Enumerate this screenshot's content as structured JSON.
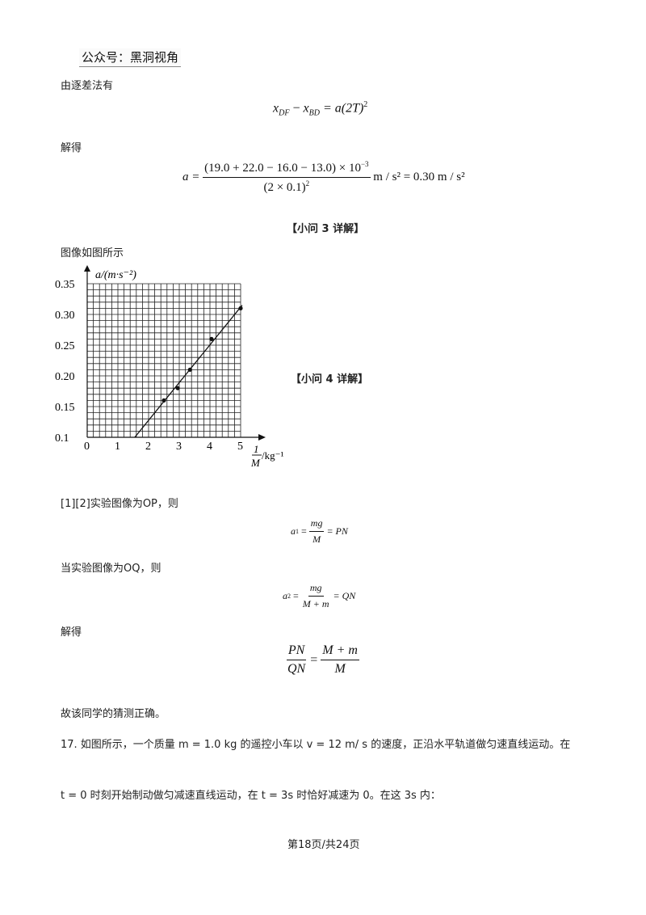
{
  "watermark": "公众号：黑洞视角",
  "para_diff": "由逐差法有",
  "eq_diff": {
    "x_df": "x",
    "sub_df": "DF",
    "minus": "−",
    "x_bd": "x",
    "sub_bd": "BD",
    "rhs": "= a(2T)",
    "sup": "2"
  },
  "solve1": "解得",
  "eq_a": {
    "lhs": "a =",
    "num": "(19.0 + 22.0 − 16.0 − 13.0) × 10",
    "exp": "−3",
    "den": "(2 × 0.1)",
    "den_sup": "2",
    "rhs": "m / s² = 0.30 m / s²"
  },
  "q3_title": "【小问 3 详解】",
  "fig_caption": "图像如图所示",
  "q4_title": "【小问 4 详解】",
  "chart_data": {
    "type": "scatter",
    "ylabel": "a/(m·s⁻²)",
    "xlabel_num": "1",
    "xlabel_den": "M",
    "xlabel_unit": "/kg⁻¹",
    "x_ticks": [
      "0",
      "1",
      "2",
      "3",
      "4",
      "5"
    ],
    "y_ticks": [
      "0.1",
      "0.15",
      "0.20",
      "0.25",
      "0.30",
      "0.35"
    ],
    "xlim": [
      0,
      5
    ],
    "ylim": [
      0.1,
      0.35
    ],
    "grid": true,
    "points": [
      {
        "x": 2.5,
        "y": 0.16
      },
      {
        "x": 2.95,
        "y": 0.18
      },
      {
        "x": 3.35,
        "y": 0.21
      },
      {
        "x": 4.05,
        "y": 0.26
      },
      {
        "x": 5.0,
        "y": 0.31
      }
    ],
    "fit_line": [
      {
        "x": 1.55,
        "y": 0.1
      },
      {
        "x": 5.05,
        "y": 0.315
      }
    ]
  },
  "p_op": "[1][2]实验图像为OP，则",
  "eq_a1": {
    "lhs": "a",
    "sub": "1",
    "eq": "=",
    "num": "mg",
    "den": "M",
    "rhs": "= PN"
  },
  "p_oq": "当实验图像为OQ，则",
  "eq_a2": {
    "lhs": "a",
    "sub": "2",
    "eq": "=",
    "num": "mg",
    "den": "M + m",
    "rhs": "= QN"
  },
  "solve2": "解得",
  "eq_ratio": {
    "num1": "PN",
    "den1": "QN",
    "eq": "=",
    "num2": "M + m",
    "den2": "M"
  },
  "conclusion": "故该同学的猜测正确。",
  "q17_line1": "17. 如图所示，一个质量 m = 1.0 kg 的遥控小车以 v = 12 m/ s 的速度，正沿水平轨道做匀速直线运动。在",
  "q17_line2": "t = 0 时刻开始制动做匀减速直线运动，在 t = 3s 时恰好减速为 0。在这 3s 内：",
  "footer": "第18页/共24页"
}
